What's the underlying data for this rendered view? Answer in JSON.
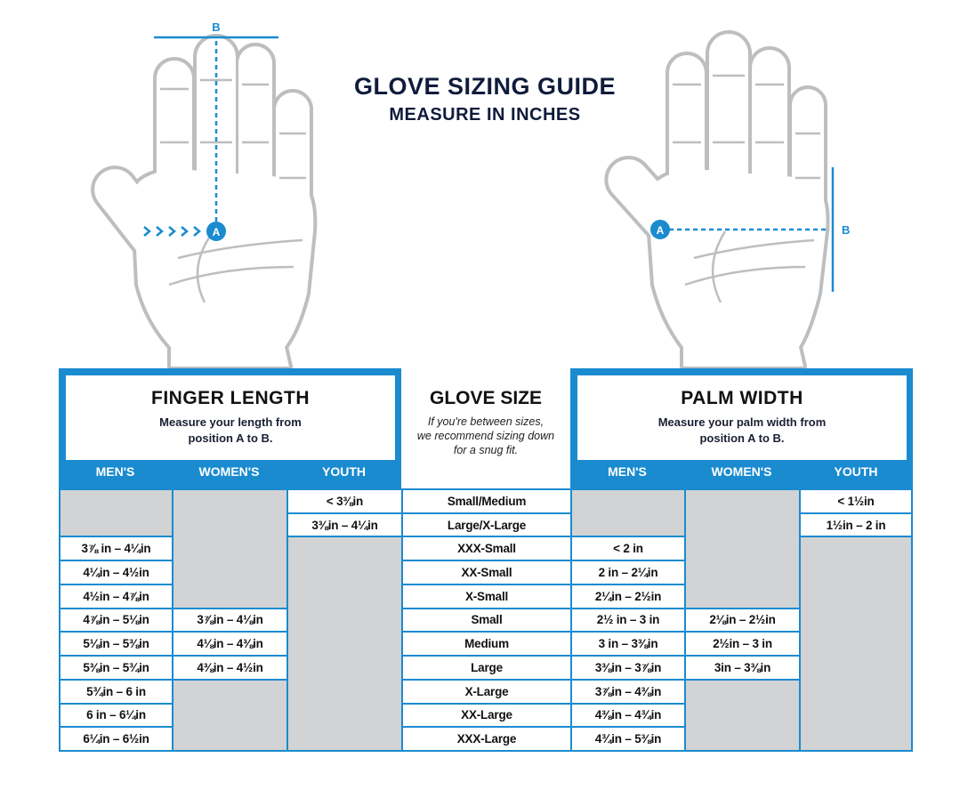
{
  "header": {
    "title": "GLOVE SIZING GUIDE",
    "subtitle": "MEASURE IN INCHES"
  },
  "colors": {
    "accent": "#1b8bd0",
    "title": "#101b3c",
    "blank_cell": "#d1d3d4",
    "hand_outline": "#bcbec0"
  },
  "diagram": {
    "left_hand": {
      "point_a": "A",
      "point_b": "B",
      "measure": "finger length"
    },
    "right_hand": {
      "point_a": "A",
      "point_b": "B",
      "measure": "palm width"
    }
  },
  "finger_length": {
    "heading": "FINGER LENGTH",
    "instruction_1": "Measure your length from",
    "instruction_2": "position A to B.",
    "columns": [
      "MEN'S",
      "WOMEN'S",
      "YOUTH"
    ],
    "mens": [
      null,
      null,
      "3⅞ in – 4¼in",
      "4¼in – 4½in",
      "4½in – 4⅞in",
      "4⅞in – 5⅛in",
      "5⅛in – 5⅜in",
      "5⅜in – 5¾in",
      "5¾in – 6 in",
      "6 in – 6¼in",
      "6¼in – 6½in"
    ],
    "womens": [
      null,
      null,
      null,
      null,
      null,
      "3⅞in – 4⅛in",
      "4⅛in – 4⅜in",
      "4⅜in – 4½in",
      null,
      null,
      null
    ],
    "youth": [
      "< 3⅜in",
      "3⅜in – 4¼in",
      null,
      null,
      null,
      null,
      null,
      null,
      null,
      null,
      null
    ]
  },
  "glove_size": {
    "heading": "GLOVE SIZE",
    "note_1": "If you're between sizes,",
    "note_2": "we recommend sizing down",
    "note_3": "for a snug fit.",
    "sizes": [
      "Small/Medium",
      "Large/X-Large",
      "XXX-Small",
      "XX-Small",
      "X-Small",
      "Small",
      "Medium",
      "Large",
      "X-Large",
      "XX-Large",
      "XXX-Large"
    ]
  },
  "palm_width": {
    "heading": "PALM WIDTH",
    "instruction_1": "Measure your palm width from",
    "instruction_2": "position A to B.",
    "columns": [
      "MEN'S",
      "WOMEN'S",
      "YOUTH"
    ],
    "mens": [
      null,
      null,
      "< 2 in",
      "2 in – 2¼in",
      "2¼in – 2½in",
      "2½ in – 3 in",
      "3 in – 3⅜in",
      "3⅜in – 3⅞in",
      "3⅞in – 4⅜in",
      "4⅜in – 4¾in",
      "4¾in – 5⅜in"
    ],
    "womens": [
      null,
      null,
      null,
      null,
      null,
      "2⅛in – 2½in",
      "2½in – 3 in",
      "3in – 3⅜in",
      null,
      null,
      null
    ],
    "youth": [
      "< 1½in",
      "1½in – 2 in",
      null,
      null,
      null,
      null,
      null,
      null,
      null,
      null,
      null
    ]
  }
}
